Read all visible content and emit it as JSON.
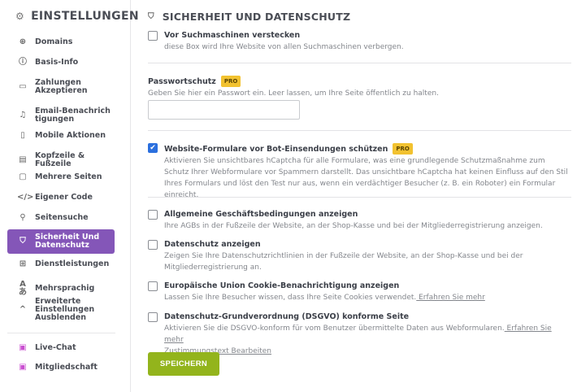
{
  "sidebar": {
    "title": "EINSTELLUNGEN",
    "items": [
      {
        "label": "Domains",
        "icon": "globe-icon"
      },
      {
        "label": "Basis-Info",
        "icon": "info-icon"
      },
      {
        "label": "Zahlungen Akzeptieren",
        "icon": "wallet-icon"
      },
      {
        "label": "Email-Benachrichtigungen",
        "icon": "bell-icon"
      },
      {
        "label": "Mobile Aktionen",
        "icon": "mobile-icon"
      },
      {
        "label": "Kopfzeile & Fußzeile",
        "icon": "layout-icon"
      },
      {
        "label": "Mehrere Seiten",
        "icon": "pages-icon"
      },
      {
        "label": "Eigener Code",
        "icon": "code-icon"
      },
      {
        "label": "Seitensuche",
        "icon": "search-icon"
      },
      {
        "label": "Sicherheit Und Datenschutz",
        "icon": "shield-icon",
        "active": true
      },
      {
        "label": "Dienstleistungen",
        "icon": "grid-icon"
      },
      {
        "label": "Mehrsprachig",
        "icon": "translate-icon"
      },
      {
        "label": "Erweiterte Einstellungen Ausblenden",
        "icon": "chevron-up-icon"
      },
      {
        "label": "Live-Chat",
        "icon": "chat-icon"
      },
      {
        "label": "Mitgliedschaft",
        "icon": "member-icon"
      }
    ],
    "accent": "#8456b8"
  },
  "main": {
    "title": "SICHERHEIT UND DATENSCHUTZ",
    "pro_badge": "PRO",
    "search_engines": {
      "title": "Vor Suchmaschinen verstecken",
      "desc": "diese Box wird Ihre Website von allen Suchmaschinen verbergen.",
      "checked": false
    },
    "password": {
      "title": "Passwortschutz",
      "desc": "Geben Sie hier ein Passwort ein. Leer lassen, um Ihre Seite öffentlich zu halten.",
      "value": ""
    },
    "bot": {
      "title": "Website-Formulare vor Bot-Einsendungen schützen",
      "desc": "Aktivieren Sie unsichtbares hCaptcha für alle Formulare, was eine grundlegende Schutzmaßnahme zum Schutz Ihrer Webformulare vor Spammern darstellt. Das unsichtbare hCaptcha hat keinen Einfluss auf den Stil Ihres Formulars und löst den Test nur aus, wenn ein verdächtiger Besucher (z. B. ein Roboter) ein Formular einreicht.",
      "checked": true
    },
    "agb": {
      "title": "Allgemeine Geschäftsbedingungen anzeigen",
      "desc": "Ihre AGBs in der Fußzeile der Website, an der Shop-Kasse und bei der Mitgliederregistrierung anzeigen.",
      "checked": false
    },
    "privacy": {
      "title": "Datenschutz anzeigen",
      "desc": "Zeigen Sie Ihre Datenschutzrichtlinien in der Fußzeile der Website, an der Shop-Kasse und bei der Mitgliederregistrierung an.",
      "checked": false
    },
    "cookie": {
      "title": "Europäische Union Cookie-Benachrichtigung anzeigen",
      "desc": "Lassen Sie Ihre Besucher wissen, dass Ihre Seite Cookies verwendet.",
      "link": " Erfahren Sie mehr",
      "checked": false
    },
    "gdpr": {
      "title": "Datenschutz-Grundverordnung (DSGVO) konforme Seite",
      "desc": "Aktivieren Sie die DSGVO-konform für vom Benutzer übermittelte Daten aus Webformularen.",
      "link": " Erfahren Sie mehr",
      "link2": "Zustimmungstext Bearbeiten",
      "checked": false
    },
    "save_label": "SPEICHERN",
    "save_color": "#93b41c"
  }
}
